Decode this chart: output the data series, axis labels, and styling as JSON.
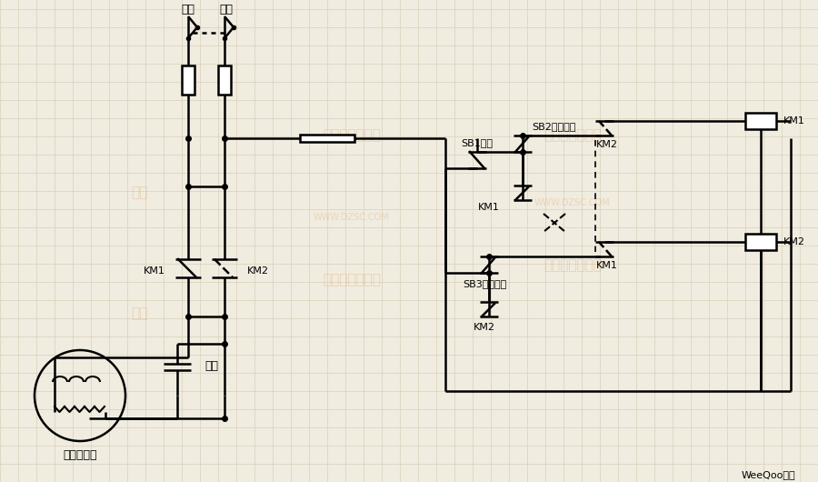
{
  "bg_color": "#f0ece0",
  "grid_color": "#d8d0b8",
  "line_color": "#000000",
  "labels": {
    "huoxian": "火线",
    "lingxian": "零线",
    "KM1_power": "KM1",
    "KM2_power": "KM2",
    "KM1_ctrl": "KM1",
    "KM2_ctrl": "KM2",
    "KM1_coil": "KM1",
    "KM2_coil": "KM2",
    "SB1": "SB1停止",
    "SB2": "SB2正转启动",
    "SB3": "SB3反转启动",
    "KM1_label1": "KM1",
    "KM2_label1": "KM2",
    "motor": "单相电动机",
    "capacitor": "电容",
    "weequoo": "WeeQoo维库"
  }
}
